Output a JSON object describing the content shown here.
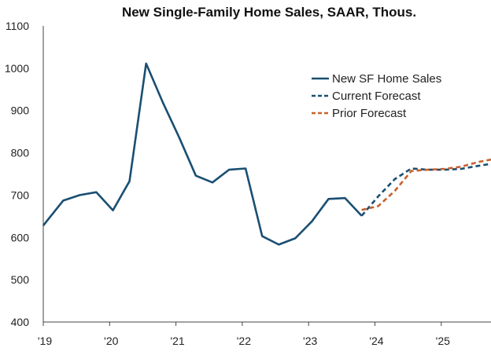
{
  "chart_data": {
    "type": "line",
    "title": "New Single-Family Home Sales, SAAR, Thous.",
    "xlabel": "",
    "ylabel": "",
    "ylim": [
      400,
      1100
    ],
    "yticks": [
      400,
      500,
      600,
      700,
      800,
      900,
      1000,
      1100
    ],
    "xlim": [
      2019.0,
      2025.75
    ],
    "xticks": [
      {
        "label": "'19",
        "x": 2019.0
      },
      {
        "label": "'20",
        "x": 2020.0
      },
      {
        "label": "'21",
        "x": 2021.0
      },
      {
        "label": "'22",
        "x": 2022.0
      },
      {
        "label": "'23",
        "x": 2023.0
      },
      {
        "label": "'24",
        "x": 2024.0
      },
      {
        "label": "'25",
        "x": 2025.0
      }
    ],
    "grid": false,
    "legend_position": "top-right",
    "series": [
      {
        "name": "New SF Home Sales",
        "color": "#1a4f72",
        "dash": "solid",
        "points": [
          [
            2019.0,
            628
          ],
          [
            2019.07,
            642
          ],
          [
            2019.3,
            687
          ],
          [
            2019.55,
            700
          ],
          [
            2019.8,
            707
          ],
          [
            2020.05,
            664
          ],
          [
            2020.3,
            733
          ],
          [
            2020.55,
            1011
          ],
          [
            2020.8,
            920
          ],
          [
            2021.05,
            836
          ],
          [
            2021.3,
            746
          ],
          [
            2021.55,
            730
          ],
          [
            2021.8,
            760
          ],
          [
            2022.05,
            763
          ],
          [
            2022.3,
            603
          ],
          [
            2022.55,
            583
          ],
          [
            2022.8,
            598
          ],
          [
            2023.05,
            638
          ],
          [
            2023.3,
            691
          ],
          [
            2023.55,
            693
          ],
          [
            2023.8,
            651
          ]
        ]
      },
      {
        "name": "Current Forecast",
        "color": "#1a4f72",
        "dash": "dashed",
        "points": [
          [
            2023.8,
            651
          ],
          [
            2024.05,
            697
          ],
          [
            2024.3,
            738
          ],
          [
            2024.55,
            763
          ],
          [
            2024.8,
            760
          ],
          [
            2025.05,
            760
          ],
          [
            2025.3,
            762
          ],
          [
            2025.55,
            769
          ],
          [
            2025.75,
            774
          ]
        ]
      },
      {
        "name": "Prior Forecast",
        "color": "#c8612a",
        "dash": "dashed",
        "points": [
          [
            2023.8,
            665
          ],
          [
            2024.05,
            674
          ],
          [
            2024.3,
            710
          ],
          [
            2024.55,
            757
          ],
          [
            2024.8,
            760
          ],
          [
            2025.05,
            762
          ],
          [
            2025.3,
            767
          ],
          [
            2025.55,
            778
          ],
          [
            2025.75,
            784
          ]
        ]
      }
    ]
  }
}
